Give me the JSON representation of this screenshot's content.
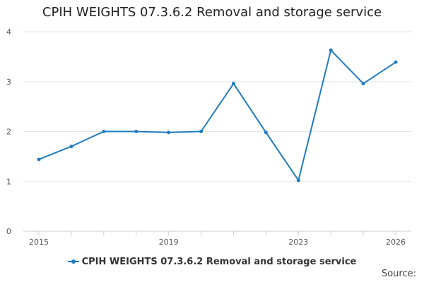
{
  "colors": {
    "series": "#1f7bbf",
    "grid": "#e6e6e6",
    "axis": "#cccccc",
    "tick_text": "#555555"
  },
  "chart_data": {
    "type": "line",
    "title": "CPIH WEIGHTS 07.3.6.2 Removal and storage service",
    "xlabel": "",
    "ylabel": "",
    "x": [
      2015,
      2016,
      2017,
      2018,
      2019,
      2020,
      2021,
      2022,
      2023,
      2024,
      2025,
      2026
    ],
    "x_tick_labels": [
      "2015",
      "2019",
      "2023",
      "2026"
    ],
    "x_tick_values": [
      2015,
      2019,
      2023,
      2026
    ],
    "xlim": [
      2015,
      2026
    ],
    "ylim": [
      0,
      4
    ],
    "y_ticks": [
      0,
      1,
      2,
      3,
      4
    ],
    "grid": true,
    "legend_position": "bottom",
    "series": [
      {
        "name": "CPIH WEIGHTS 07.3.6.2 Removal and storage service",
        "values": [
          1.44,
          1.7,
          2.0,
          2.0,
          1.98,
          2.0,
          2.96,
          1.98,
          1.02,
          3.63,
          2.96,
          3.39
        ]
      }
    ]
  },
  "source_label": "Source:"
}
